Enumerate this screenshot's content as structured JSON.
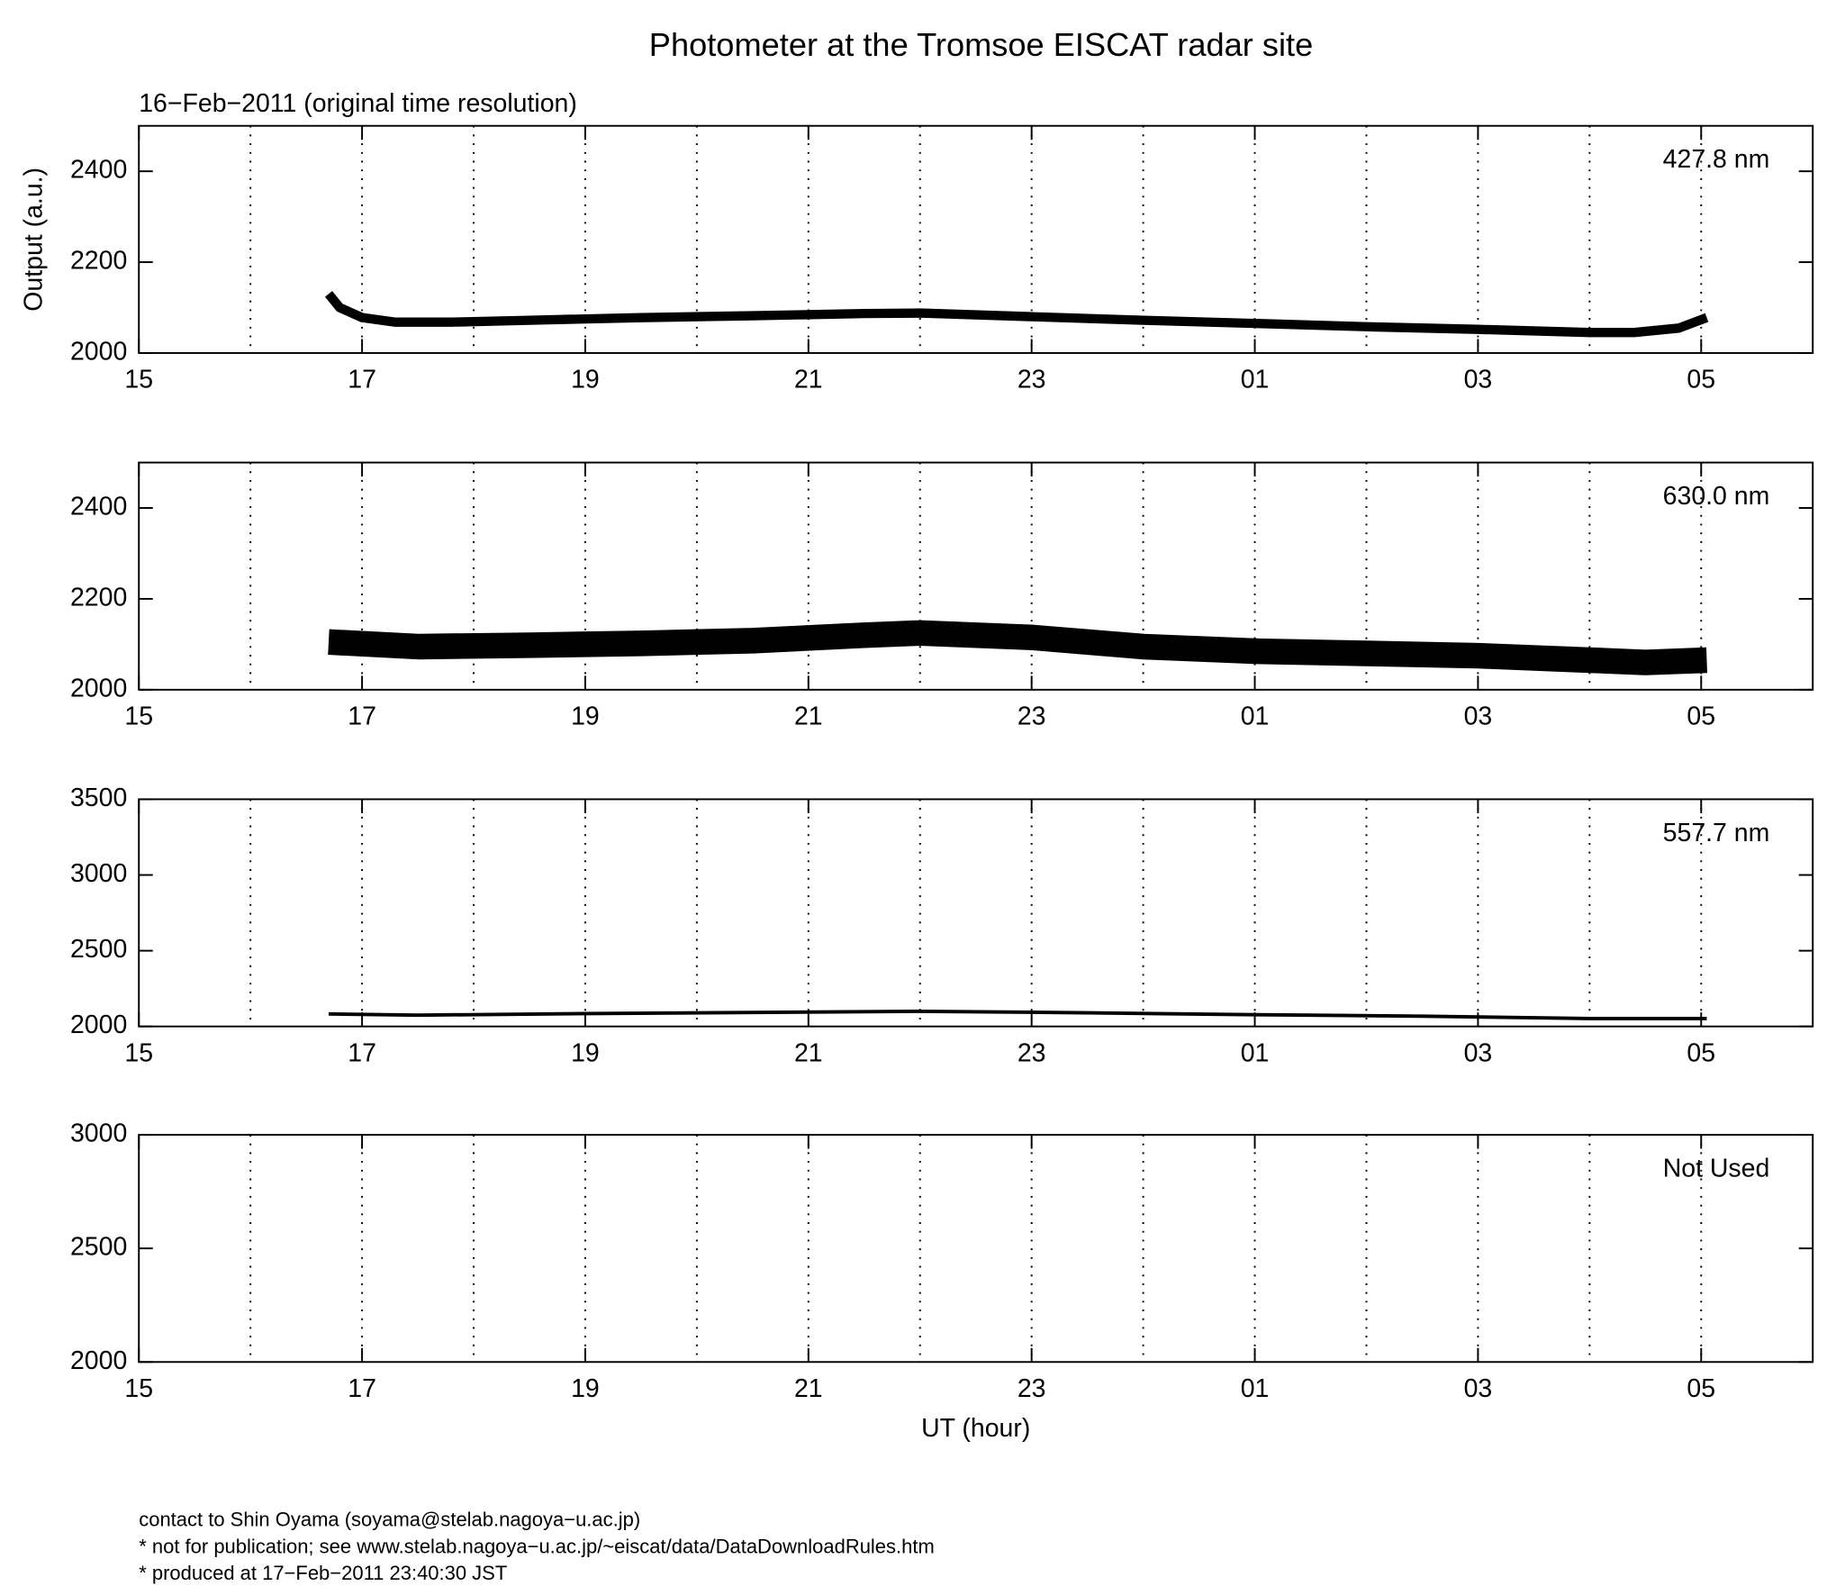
{
  "title": "Photometer at the Tromsoe EISCAT radar site",
  "subtitle": "16−Feb−2011 (original time resolution)",
  "footer": [
    "contact to Shin Oyama (soyama@stelab.nagoya−u.ac.jp)",
    "* not for publication; see www.stelab.nagoya−u.ac.jp/~eiscat/data/DataDownloadRules.htm",
    "* produced at 17−Feb−2011 23:40:30 JST"
  ],
  "chart_data": [
    {
      "type": "line",
      "annotation": "427.8 nm",
      "ylabel": "Output (a.u.)",
      "color": "#000000",
      "x": [
        16.7,
        16.8,
        17.0,
        17.3,
        17.8,
        18.5,
        19.5,
        20.5,
        21.5,
        22.0,
        23.0,
        24.0,
        25.0,
        26.0,
        27.0,
        28.0,
        28.4,
        28.8,
        29.05
      ],
      "values": [
        2130,
        2100,
        2078,
        2068,
        2068,
        2072,
        2078,
        2082,
        2087,
        2088,
        2080,
        2072,
        2065,
        2058,
        2052,
        2045,
        2045,
        2055,
        2078
      ],
      "xlim": [
        15,
        30
      ],
      "ylim": [
        2000,
        2500
      ],
      "xticks": [
        15,
        17,
        19,
        21,
        23,
        {
          "value": 25,
          "label": "01"
        },
        {
          "value": 27,
          "label": "03"
        },
        {
          "value": 29,
          "label": "05"
        }
      ],
      "xminor_ticks": [
        16,
        18,
        20,
        22,
        24,
        26,
        28
      ],
      "yticks": [
        2000,
        2200,
        2400
      ],
      "grid": "x-dotted"
    },
    {
      "type": "line",
      "annotation": "630.0 nm",
      "color": "#000000",
      "x": [
        16.7,
        17.5,
        18.5,
        19.5,
        20.5,
        21.5,
        22.0,
        23.0,
        24.0,
        25.0,
        26.0,
        27.0,
        28.0,
        28.5,
        29.05
      ],
      "values": [
        2105,
        2095,
        2098,
        2102,
        2108,
        2120,
        2125,
        2115,
        2095,
        2085,
        2080,
        2075,
        2065,
        2060,
        2065
      ],
      "xlim": [
        15,
        30
      ],
      "ylim": [
        2000,
        2500
      ],
      "xticks": [
        15,
        17,
        19,
        21,
        23,
        {
          "value": 25,
          "label": "01"
        },
        {
          "value": 27,
          "label": "03"
        },
        {
          "value": 29,
          "label": "05"
        }
      ],
      "xminor_ticks": [
        16,
        18,
        20,
        22,
        24,
        26,
        28
      ],
      "yticks": [
        2000,
        2200,
        2400
      ],
      "grid": "x-dotted"
    },
    {
      "type": "line",
      "annotation": "557.7 nm",
      "color": "#000000",
      "x": [
        16.7,
        17.5,
        19.0,
        20.5,
        22.0,
        23.5,
        25.0,
        26.5,
        28.0,
        29.05
      ],
      "values": [
        2082,
        2075,
        2085,
        2092,
        2100,
        2090,
        2078,
        2068,
        2052,
        2052
      ],
      "xlim": [
        15,
        30
      ],
      "ylim": [
        2000,
        3500
      ],
      "xticks": [
        15,
        17,
        19,
        21,
        23,
        {
          "value": 25,
          "label": "01"
        },
        {
          "value": 27,
          "label": "03"
        },
        {
          "value": 29,
          "label": "05"
        }
      ],
      "xminor_ticks": [
        16,
        18,
        20,
        22,
        24,
        26,
        28
      ],
      "yticks": [
        2000,
        2500,
        3000,
        3500
      ],
      "grid": "x-dotted"
    },
    {
      "type": "line",
      "annotation": "Not Used",
      "xlabel": "UT (hour)",
      "color": "#000000",
      "x": [],
      "values": [],
      "xlim": [
        15,
        30
      ],
      "ylim": [
        2000,
        3000
      ],
      "xticks": [
        15,
        17,
        19,
        21,
        23,
        {
          "value": 25,
          "label": "01"
        },
        {
          "value": 27,
          "label": "03"
        },
        {
          "value": 29,
          "label": "05"
        }
      ],
      "xminor_ticks": [
        16,
        18,
        20,
        22,
        24,
        26,
        28
      ],
      "yticks": [
        2000,
        2500,
        3000
      ],
      "grid": "x-dotted"
    }
  ]
}
